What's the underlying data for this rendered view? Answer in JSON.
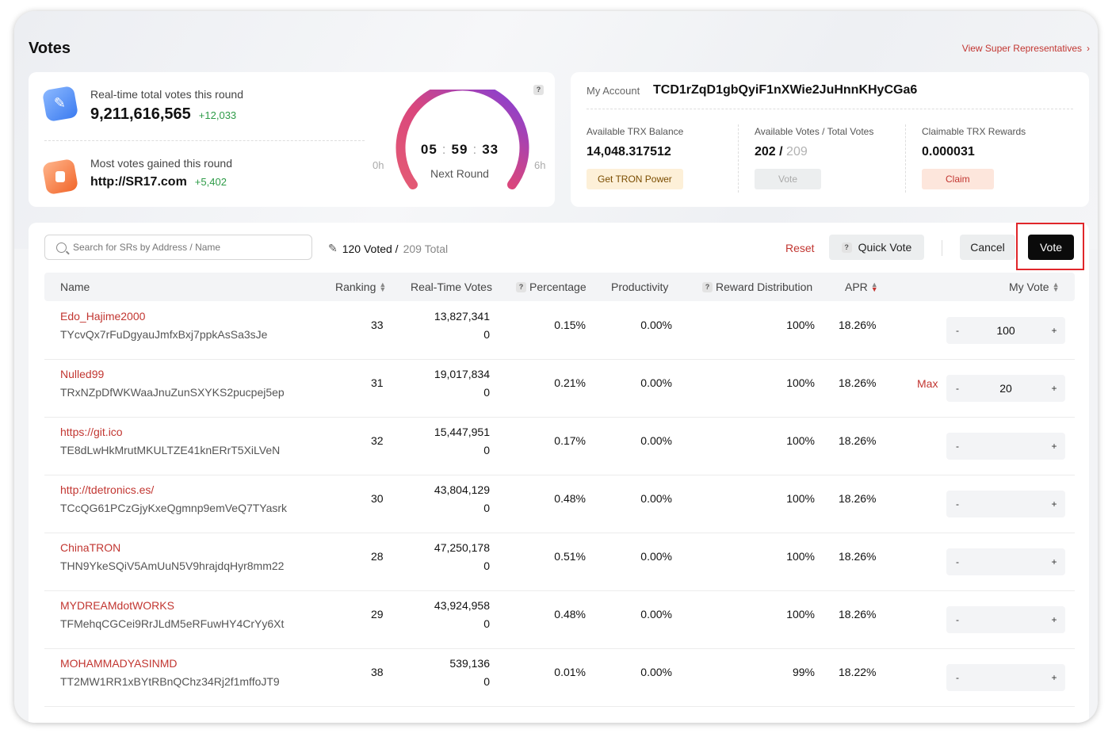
{
  "header": {
    "title": "Votes",
    "view_sr_link": "View Super Representatives"
  },
  "round_stats": {
    "total_votes_label": "Real-time total votes this round",
    "total_votes_value": "9,211,616,565",
    "total_votes_delta": "+12,033",
    "most_gained_label": "Most votes gained this round",
    "most_gained_value": "http://SR17.com",
    "most_gained_delta": "+5,402"
  },
  "countdown": {
    "hours": "05",
    "minutes": "59",
    "seconds": "33",
    "label": "Next Round",
    "min_label": "0h",
    "max_label": "6h",
    "elapsed_fraction": 0.0
  },
  "account": {
    "label": "My Account",
    "address": "TCD1rZqD1gbQyiF1nXWie2JuHnnKHyCGa6",
    "balance_label": "Available TRX Balance",
    "balance_value": "14,048.317512",
    "get_power_button": "Get TRON Power",
    "votes_label": "Available Votes / Total Votes",
    "available_votes": "202 /",
    "total_votes": "209",
    "vote_button": "Vote",
    "rewards_label": "Claimable TRX Rewards",
    "rewards_value": "0.000031",
    "claim_button": "Claim"
  },
  "toolbar": {
    "search_placeholder": "Search for SRs by Address / Name",
    "voted_count": "120 Voted /",
    "total_count": "209 Total",
    "reset_label": "Reset",
    "quick_vote_label": "Quick Vote",
    "cancel_label": "Cancel",
    "vote_label": "Vote"
  },
  "table": {
    "columns": {
      "name": "Name",
      "ranking": "Ranking",
      "realtime_votes": "Real-Time Votes",
      "percentage": "Percentage",
      "productivity": "Productivity",
      "reward_distribution": "Reward Distribution",
      "apr": "APR",
      "my_vote": "My Vote"
    },
    "max_label": "Max",
    "rows": [
      {
        "name": "Edo_Hajime2000",
        "address": "TYcvQx7rFuDgyauJmfxBxj7ppkAsSa3sJe",
        "ranking": "33",
        "votes": "13,827,341",
        "my_votes_cast": "0",
        "percentage": "0.15%",
        "productivity": "0.00%",
        "reward": "100%",
        "apr": "18.26%",
        "my_vote": "100",
        "show_max": false
      },
      {
        "name": "Nulled99",
        "address": "TRxNZpDfWKWaaJnuZunSXYKS2pucpej5ep",
        "ranking": "31",
        "votes": "19,017,834",
        "my_votes_cast": "0",
        "percentage": "0.21%",
        "productivity": "0.00%",
        "reward": "100%",
        "apr": "18.26%",
        "my_vote": "20",
        "show_max": true
      },
      {
        "name": "https://git.ico",
        "address": "TE8dLwHkMrutMKULTZE41knERrT5XiLVeN",
        "ranking": "32",
        "votes": "15,447,951",
        "my_votes_cast": "0",
        "percentage": "0.17%",
        "productivity": "0.00%",
        "reward": "100%",
        "apr": "18.26%",
        "my_vote": "",
        "show_max": false
      },
      {
        "name": "http://tdetronics.es/",
        "address": "TCcQG61PCzGjyKxeQgmnp9emVeQ7TYasrk",
        "ranking": "30",
        "votes": "43,804,129",
        "my_votes_cast": "0",
        "percentage": "0.48%",
        "productivity": "0.00%",
        "reward": "100%",
        "apr": "18.26%",
        "my_vote": "",
        "show_max": false
      },
      {
        "name": "ChinaTRON",
        "address": "THN9YkeSQiV5AmUuN5V9hrajdqHyr8mm22",
        "ranking": "28",
        "votes": "47,250,178",
        "my_votes_cast": "0",
        "percentage": "0.51%",
        "productivity": "0.00%",
        "reward": "100%",
        "apr": "18.26%",
        "my_vote": "",
        "show_max": false
      },
      {
        "name": "MYDREAMdotWORKS",
        "address": "TFMehqCGCei9RrJLdM5eRFuwHY4CrYy6Xt",
        "ranking": "29",
        "votes": "43,924,958",
        "my_votes_cast": "0",
        "percentage": "0.48%",
        "productivity": "0.00%",
        "reward": "100%",
        "apr": "18.26%",
        "my_vote": "",
        "show_max": false
      },
      {
        "name": "MOHAMMADYASINMD",
        "address": "TT2MW1RR1xBYtRBnQChz34Rj2f1mffoJT9",
        "ranking": "38",
        "votes": "539,136",
        "my_votes_cast": "0",
        "percentage": "0.01%",
        "productivity": "0.00%",
        "reward": "99%",
        "apr": "18.22%",
        "my_vote": "",
        "show_max": false
      }
    ]
  },
  "colors": {
    "accent_red": "#c23631",
    "positive_green": "#2d9b47",
    "highlight_box": "#e0262a"
  }
}
